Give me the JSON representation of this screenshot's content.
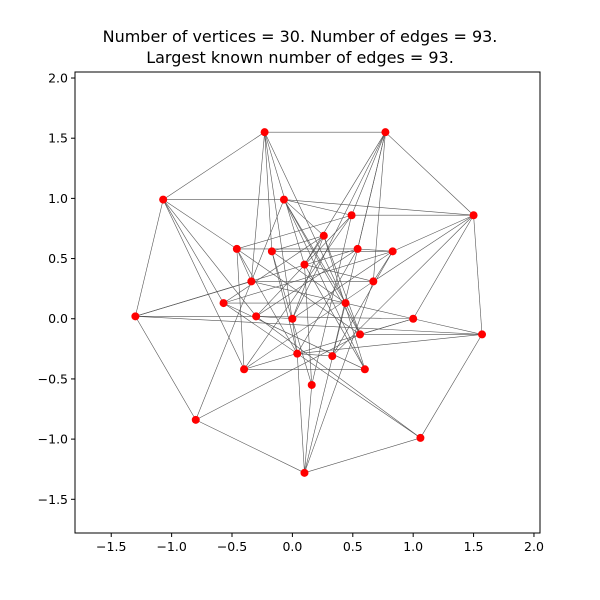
{
  "title_lines": [
    "Number of vertices = 30. Number of edges = 93.",
    "Largest known number of edges = 93."
  ],
  "colors": {
    "node": "#ff0000",
    "edge": "#555555",
    "axes": "#000000",
    "background": "#ffffff"
  },
  "chart_data": {
    "type": "graph",
    "xlim": [
      -1.8,
      2.05
    ],
    "ylim": [
      -1.78,
      2.05
    ],
    "xticks": [
      -1.5,
      -1.0,
      -0.5,
      0.0,
      0.5,
      1.0,
      1.5,
      2.0
    ],
    "yticks": [
      -1.5,
      -1.0,
      -0.5,
      0.0,
      0.5,
      1.0,
      1.5,
      2.0
    ],
    "xtick_labels": [
      "−1.5",
      "−1.0",
      "−0.5",
      "0.0",
      "0.5",
      "1.0",
      "1.5",
      "2.0"
    ],
    "ytick_labels": [
      "−1.5",
      "−1.0",
      "−0.5",
      "0.0",
      "0.5",
      "1.0",
      "1.5",
      "2.0"
    ],
    "nodes": [
      [
        -0.23,
        1.55
      ],
      [
        0.77,
        1.55
      ],
      [
        -1.07,
        0.99
      ],
      [
        -0.07,
        0.99
      ],
      [
        0.49,
        0.86
      ],
      [
        1.5,
        0.86
      ],
      [
        -0.46,
        0.58
      ],
      [
        -0.17,
        0.56
      ],
      [
        0.26,
        0.69
      ],
      [
        0.54,
        0.58
      ],
      [
        0.83,
        0.56
      ],
      [
        0.1,
        0.45
      ],
      [
        -0.34,
        0.31
      ],
      [
        0.67,
        0.31
      ],
      [
        -0.57,
        0.13
      ],
      [
        0.44,
        0.13
      ],
      [
        -1.3,
        0.02
      ],
      [
        -0.3,
        0.02
      ],
      [
        0.0,
        0.0
      ],
      [
        1.0,
        0.0
      ],
      [
        0.56,
        -0.13
      ],
      [
        1.57,
        -0.13
      ],
      [
        0.04,
        -0.29
      ],
      [
        0.33,
        -0.31
      ],
      [
        -0.4,
        -0.42
      ],
      [
        0.6,
        -0.42
      ],
      [
        0.16,
        -0.55
      ],
      [
        -0.8,
        -0.84
      ],
      [
        1.06,
        -0.99
      ],
      [
        0.1,
        -1.28
      ]
    ],
    "edges": [
      [
        0,
        1
      ],
      [
        0,
        2
      ],
      [
        0,
        7
      ],
      [
        0,
        12
      ],
      [
        0,
        11
      ],
      [
        0,
        15
      ],
      [
        0,
        22
      ],
      [
        1,
        4
      ],
      [
        1,
        5
      ],
      [
        1,
        9
      ],
      [
        1,
        11
      ],
      [
        1,
        13
      ],
      [
        1,
        18
      ],
      [
        1,
        23
      ],
      [
        2,
        3
      ],
      [
        2,
        6
      ],
      [
        2,
        14
      ],
      [
        2,
        16
      ],
      [
        2,
        17
      ],
      [
        2,
        24
      ],
      [
        3,
        4
      ],
      [
        3,
        5
      ],
      [
        3,
        8
      ],
      [
        3,
        20
      ],
      [
        3,
        15
      ],
      [
        3,
        25
      ],
      [
        3,
        12
      ],
      [
        4,
        5
      ],
      [
        4,
        6
      ],
      [
        4,
        26
      ],
      [
        4,
        24
      ],
      [
        4,
        17
      ],
      [
        5,
        10
      ],
      [
        5,
        19
      ],
      [
        5,
        21
      ],
      [
        5,
        13
      ],
      [
        5,
        23
      ],
      [
        6,
        9
      ],
      [
        6,
        12
      ],
      [
        6,
        20
      ],
      [
        6,
        22
      ],
      [
        6,
        24
      ],
      [
        7,
        8
      ],
      [
        7,
        10
      ],
      [
        7,
        15
      ],
      [
        7,
        22
      ],
      [
        7,
        26
      ],
      [
        8,
        11
      ],
      [
        8,
        14
      ],
      [
        8,
        18
      ],
      [
        8,
        20
      ],
      [
        8,
        25
      ],
      [
        9,
        10
      ],
      [
        9,
        16
      ],
      [
        9,
        22
      ],
      [
        9,
        17
      ],
      [
        10,
        13
      ],
      [
        10,
        14
      ],
      [
        10,
        23
      ],
      [
        10,
        18
      ],
      [
        11,
        13
      ],
      [
        11,
        26
      ],
      [
        11,
        25
      ],
      [
        12,
        13
      ],
      [
        12,
        16
      ],
      [
        12,
        19
      ],
      [
        12,
        27
      ],
      [
        13,
        24
      ],
      [
        13,
        29
      ],
      [
        14,
        15
      ],
      [
        14,
        25
      ],
      [
        14,
        28
      ],
      [
        15,
        20
      ],
      [
        15,
        29
      ],
      [
        16,
        17
      ],
      [
        16,
        21
      ],
      [
        16,
        27
      ],
      [
        17,
        18
      ],
      [
        17,
        19
      ],
      [
        17,
        28
      ],
      [
        19,
        20
      ],
      [
        19,
        21
      ],
      [
        19,
        24
      ],
      [
        20,
        21
      ],
      [
        20,
        27
      ],
      [
        21,
        22
      ],
      [
        21,
        28
      ],
      [
        22,
        23
      ],
      [
        22,
        29
      ],
      [
        24,
        25
      ],
      [
        26,
        29
      ],
      [
        27,
        29
      ],
      [
        28,
        29
      ]
    ]
  }
}
